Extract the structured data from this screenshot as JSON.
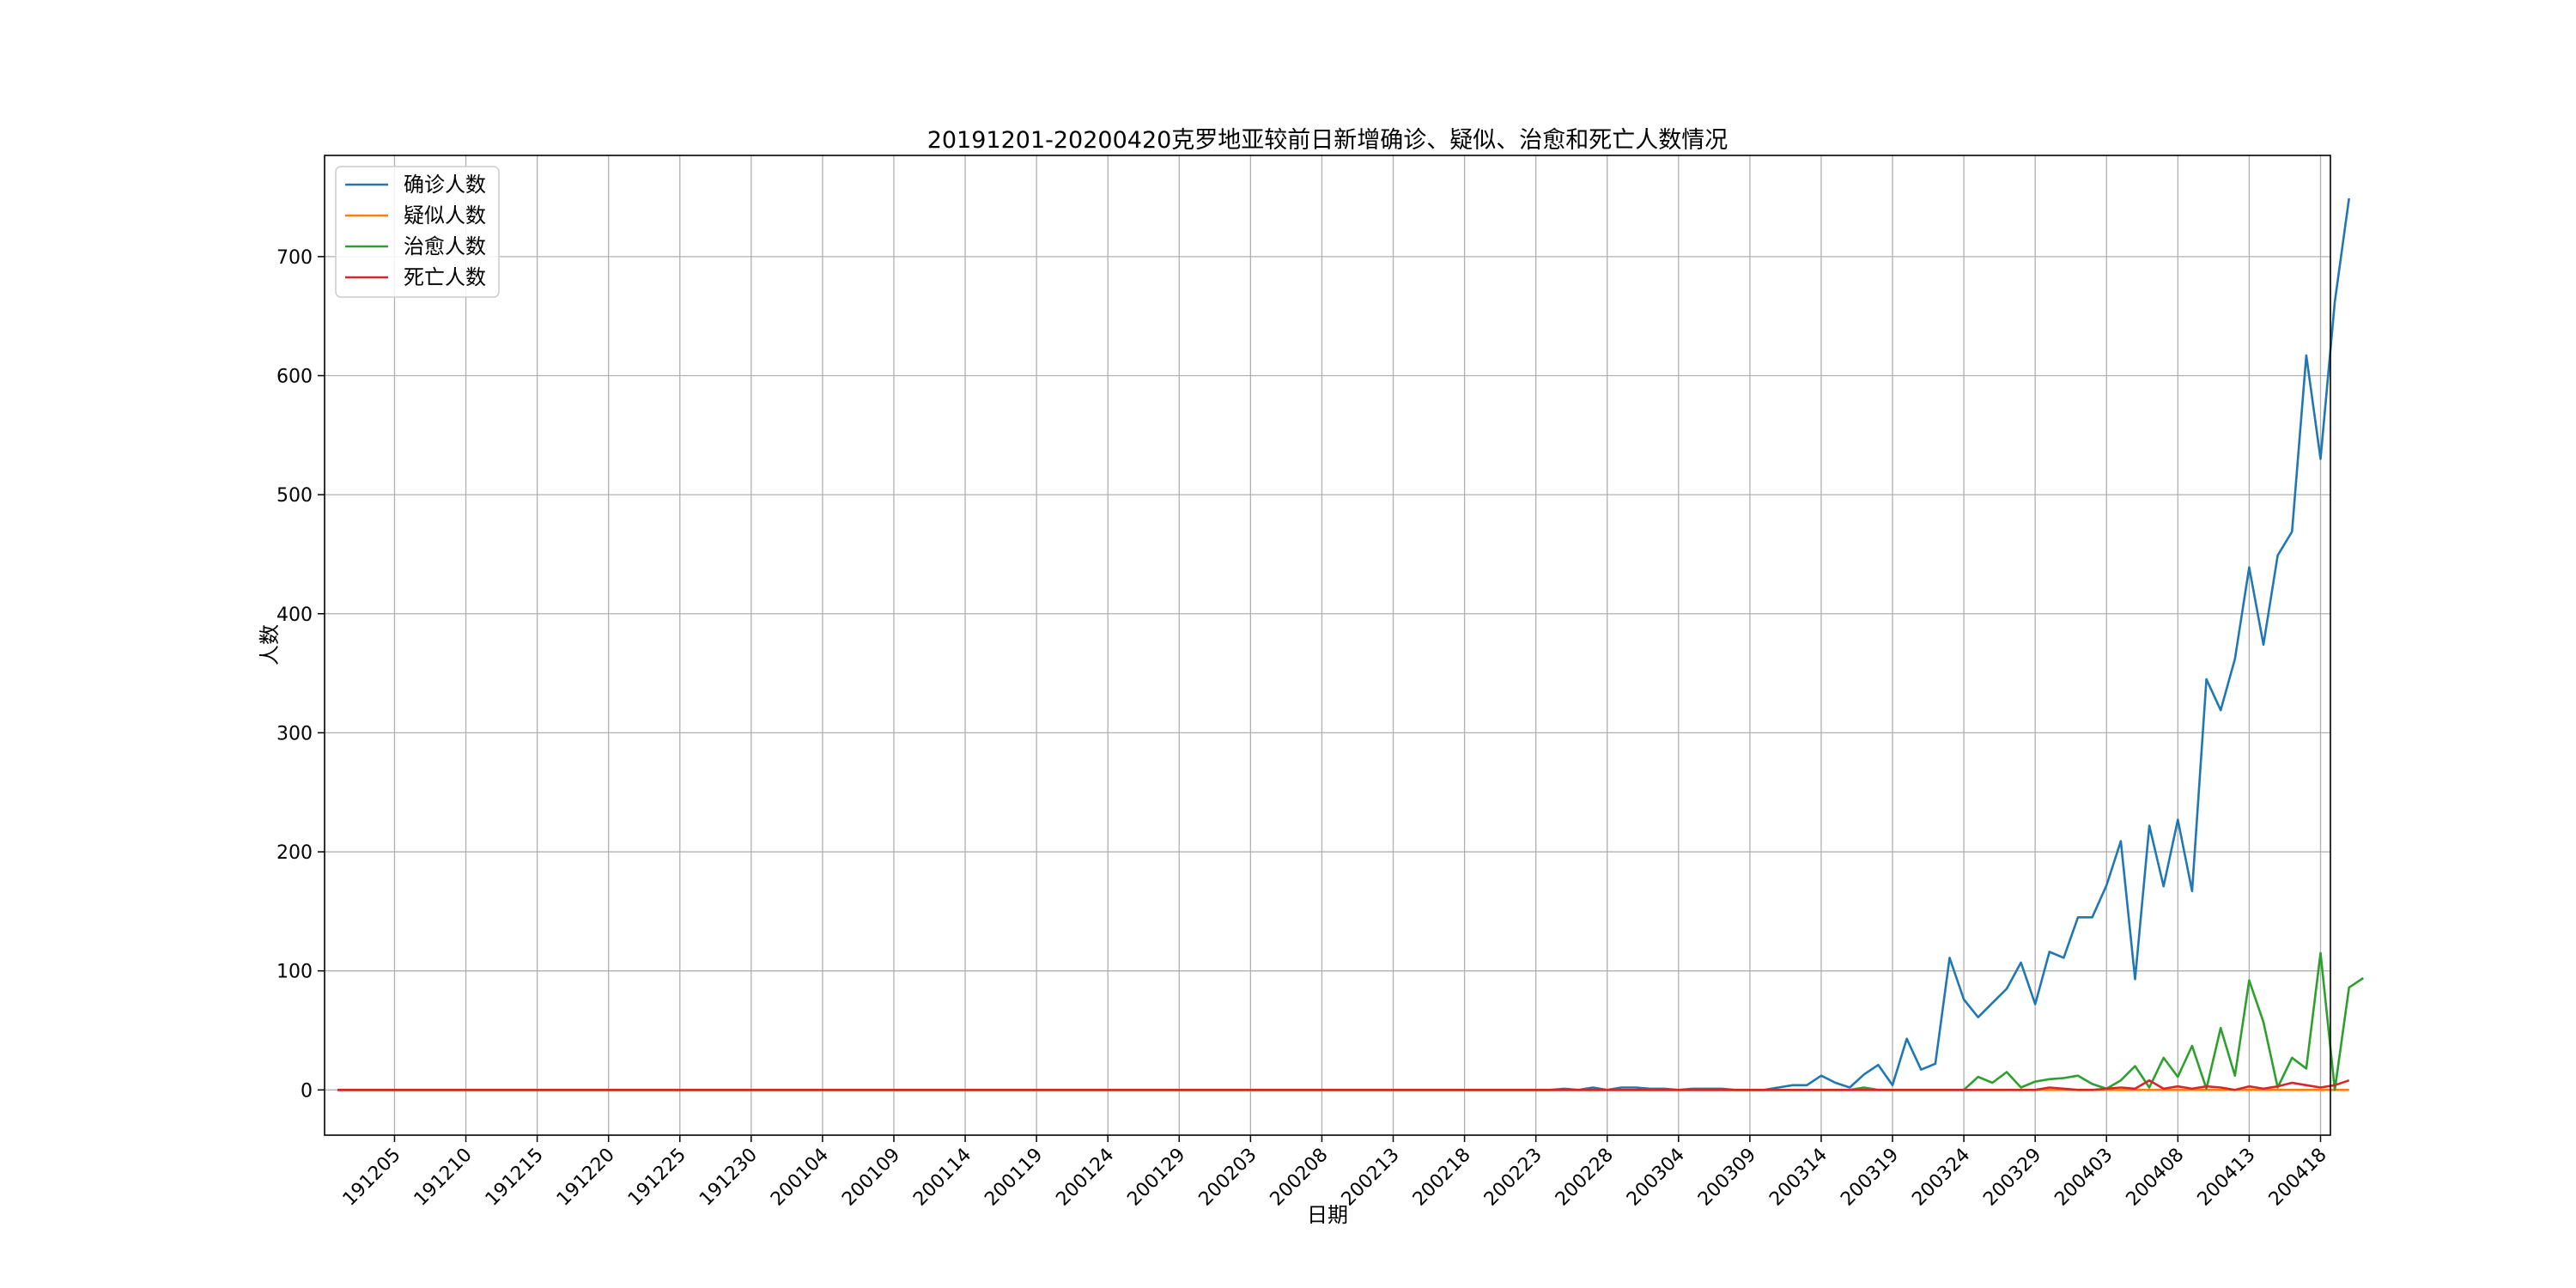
{
  "chart_data": {
    "type": "line",
    "title": "20191201-20200420克罗地亚较前日新增确诊、疑似、治愈和死亡人数情况",
    "xlabel": "日期",
    "ylabel": "人数",
    "x_start": "191201",
    "x_ticks": [
      "191205",
      "191210",
      "191215",
      "191220",
      "191225",
      "191230",
      "200104",
      "200109",
      "200114",
      "200119",
      "200124",
      "200129",
      "200203",
      "200208",
      "200213",
      "200218",
      "200223",
      "200228",
      "200304",
      "200309",
      "200314",
      "200319",
      "200324",
      "200329",
      "200403",
      "200408",
      "200413",
      "200418"
    ],
    "ylim": [
      -38,
      785
    ],
    "y_ticks": [
      0,
      100,
      200,
      300,
      400,
      500,
      600,
      700
    ],
    "grid": true,
    "legend_position": "top-left",
    "series": [
      {
        "name": "确诊人数",
        "color": "#1f77b4",
        "points": [
          [
            "191201",
            0
          ],
          [
            "200224",
            0
          ],
          [
            "200225",
            1
          ],
          [
            "200226",
            0
          ],
          [
            "200227",
            2
          ],
          [
            "200228",
            0
          ],
          [
            "200229",
            2
          ],
          [
            "200301",
            2
          ],
          [
            "200302",
            1
          ],
          [
            "200303",
            1
          ],
          [
            "200304",
            0
          ],
          [
            "200305",
            1
          ],
          [
            "200306",
            1
          ],
          [
            "200307",
            1
          ],
          [
            "200308",
            0
          ],
          [
            "200309",
            0
          ],
          [
            "200310",
            0
          ],
          [
            "200311",
            2
          ],
          [
            "200312",
            4
          ],
          [
            "200313",
            4
          ],
          [
            "200314",
            12
          ],
          [
            "200315",
            6
          ],
          [
            "200316",
            2
          ],
          [
            "200317",
            13
          ],
          [
            "200318",
            21
          ],
          [
            "200319",
            4
          ],
          [
            "200320",
            43
          ],
          [
            "200321",
            17
          ],
          [
            "200322",
            22
          ],
          [
            "200323",
            111
          ],
          [
            "200324",
            76
          ],
          [
            "200325",
            61
          ],
          [
            "200326",
            73
          ],
          [
            "200327",
            85
          ],
          [
            "200328",
            107
          ],
          [
            "200329",
            72
          ],
          [
            "200330",
            116
          ],
          [
            "200331",
            111
          ],
          [
            "200401",
            145
          ],
          [
            "200402",
            145
          ],
          [
            "200403",
            172
          ],
          [
            "200404",
            209
          ],
          [
            "200405",
            93
          ],
          [
            "200406",
            222
          ],
          [
            "200407",
            171
          ],
          [
            "200408",
            227
          ],
          [
            "200409",
            167
          ],
          [
            "200410",
            345
          ],
          [
            "200411",
            319
          ],
          [
            "200412",
            362
          ],
          [
            "200413",
            439
          ],
          [
            "200414",
            374
          ],
          [
            "200415",
            449
          ],
          [
            "200416",
            469
          ],
          [
            "200417",
            617
          ],
          [
            "200418",
            530
          ],
          [
            "200419",
            662
          ],
          [
            "200420",
            749
          ]
        ]
      },
      {
        "name": "疑似人数",
        "color": "#ff7f0e",
        "points": [
          [
            "191201",
            0
          ],
          [
            "200420",
            0
          ]
        ]
      },
      {
        "name": "治愈人数",
        "color": "#2ca02c",
        "points": [
          [
            "191201",
            0
          ],
          [
            "200316",
            0
          ],
          [
            "200317",
            2
          ],
          [
            "200318",
            0
          ],
          [
            "200324",
            0
          ],
          [
            "200325",
            11
          ],
          [
            "200326",
            6
          ],
          [
            "200327",
            15
          ],
          [
            "200328",
            2
          ],
          [
            "200329",
            7
          ],
          [
            "200330",
            9
          ],
          [
            "200331",
            10
          ],
          [
            "200401",
            12
          ],
          [
            "200402",
            5
          ],
          [
            "200403",
            1
          ],
          [
            "200404",
            8
          ],
          [
            "200405",
            20
          ],
          [
            "200406",
            2
          ],
          [
            "200407",
            27
          ],
          [
            "200408",
            11
          ],
          [
            "200409",
            37
          ],
          [
            "200410",
            1
          ],
          [
            "200411",
            52
          ],
          [
            "200412",
            12
          ],
          [
            "200413",
            92
          ],
          [
            "200414",
            57
          ],
          [
            "200415",
            2
          ],
          [
            "200416",
            27
          ],
          [
            "200417",
            18
          ],
          [
            "200418",
            115
          ],
          [
            "200419",
            0
          ],
          [
            "200420",
            86
          ],
          [
            "200421",
            94
          ]
        ]
      },
      {
        "name": "死亡人数",
        "color": "#d62728",
        "points": [
          [
            "191201",
            0
          ],
          [
            "200329",
            0
          ],
          [
            "200330",
            2
          ],
          [
            "200331",
            1
          ],
          [
            "200401",
            0
          ],
          [
            "200402",
            0
          ],
          [
            "200403",
            1
          ],
          [
            "200404",
            2
          ],
          [
            "200405",
            1
          ],
          [
            "200406",
            8
          ],
          [
            "200407",
            1
          ],
          [
            "200408",
            3
          ],
          [
            "200409",
            1
          ],
          [
            "200410",
            3
          ],
          [
            "200411",
            2
          ],
          [
            "200412",
            0
          ],
          [
            "200413",
            3
          ],
          [
            "200414",
            1
          ],
          [
            "200415",
            3
          ],
          [
            "200416",
            6
          ],
          [
            "200417",
            4
          ],
          [
            "200418",
            2
          ],
          [
            "200419",
            4
          ],
          [
            "200420",
            8
          ]
        ]
      }
    ]
  }
}
